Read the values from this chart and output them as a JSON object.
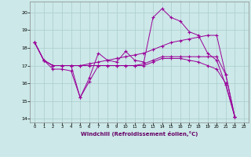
{
  "background_color": "#cce8e8",
  "grid_color": "#aacccc",
  "line_color": "#990099",
  "marker": "+",
  "xlabel": "Windchill (Refroidissement éolien,°C)",
  "xlim": [
    -0.5,
    23.5
  ],
  "ylim": [
    13.8,
    20.6
  ],
  "yticks": [
    14,
    15,
    16,
    17,
    18,
    19,
    20
  ],
  "xticks": [
    0,
    1,
    2,
    3,
    4,
    5,
    6,
    7,
    8,
    9,
    10,
    11,
    12,
    13,
    14,
    15,
    16,
    17,
    18,
    19,
    20,
    21,
    22,
    23
  ],
  "series": [
    [
      18.3,
      17.3,
      16.8,
      16.8,
      16.7,
      15.2,
      16.3,
      17.7,
      17.3,
      17.2,
      17.8,
      17.3,
      17.2,
      19.7,
      20.2,
      19.7,
      19.5,
      18.9,
      18.7,
      17.7,
      17.3,
      15.9,
      14.1
    ],
    [
      18.3,
      17.3,
      17.0,
      17.0,
      17.0,
      17.0,
      17.1,
      17.2,
      17.3,
      17.4,
      17.5,
      17.6,
      17.7,
      17.9,
      18.1,
      18.3,
      18.4,
      18.5,
      18.6,
      18.7,
      18.7,
      16.5,
      14.1
    ],
    [
      18.3,
      17.3,
      17.0,
      17.0,
      17.0,
      17.0,
      17.0,
      17.0,
      17.0,
      17.0,
      17.0,
      17.0,
      17.1,
      17.3,
      17.5,
      17.5,
      17.5,
      17.5,
      17.5,
      17.5,
      17.5,
      16.5,
      14.1
    ],
    [
      18.3,
      17.3,
      17.0,
      17.0,
      17.0,
      15.2,
      16.1,
      17.0,
      17.0,
      17.0,
      17.0,
      17.0,
      17.0,
      17.2,
      17.4,
      17.4,
      17.4,
      17.3,
      17.2,
      17.0,
      16.8,
      16.0,
      14.1
    ]
  ]
}
